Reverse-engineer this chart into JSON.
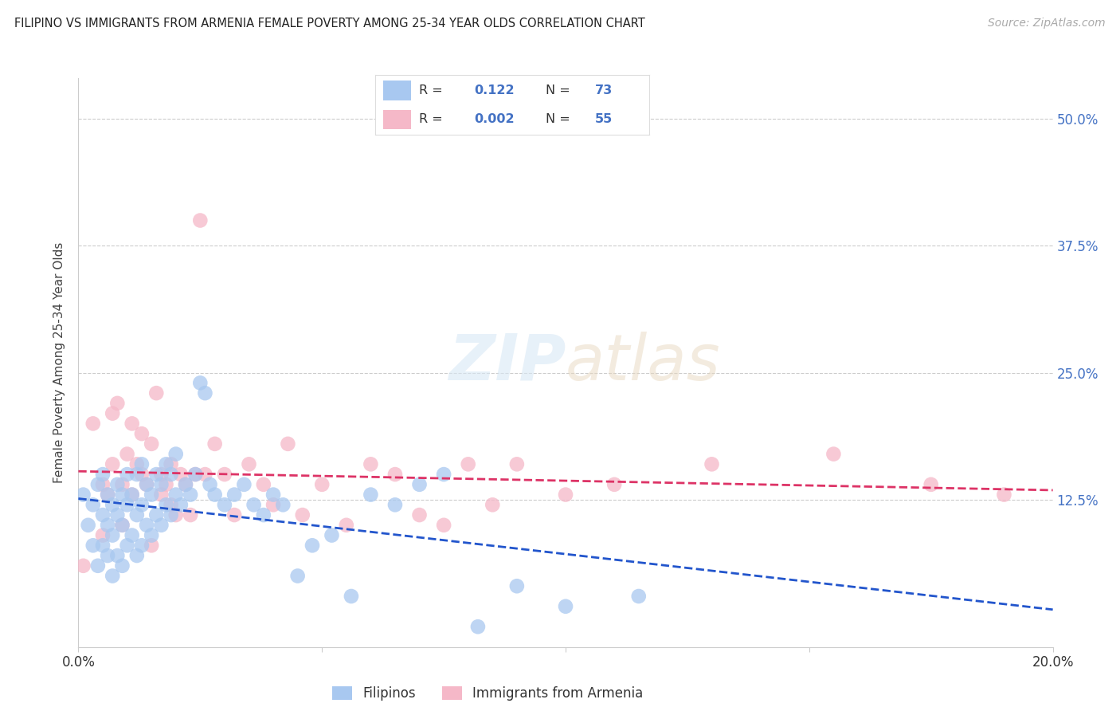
{
  "title": "FILIPINO VS IMMIGRANTS FROM ARMENIA FEMALE POVERTY AMONG 25-34 YEAR OLDS CORRELATION CHART",
  "source": "Source: ZipAtlas.com",
  "ylabel": "Female Poverty Among 25-34 Year Olds",
  "xlim": [
    0.0,
    0.2
  ],
  "ylim": [
    -0.02,
    0.54
  ],
  "xticks": [
    0.0,
    0.05,
    0.1,
    0.15,
    0.2
  ],
  "xtick_labels": [
    "0.0%",
    "",
    "",
    "",
    "20.0%"
  ],
  "ytick_positions": [
    0.0,
    0.125,
    0.25,
    0.375,
    0.5
  ],
  "ytick_labels_right": [
    "",
    "12.5%",
    "25.0%",
    "37.5%",
    "50.0%"
  ],
  "background_color": "#ffffff",
  "grid_color": "#cccccc",
  "filipino_color": "#a8c8f0",
  "armenia_color": "#f5b8c8",
  "filipino_line_color": "#2255cc",
  "armenia_line_color": "#dd3366",
  "watermark": "ZIPatlas",
  "legend_label_1": "Filipinos",
  "legend_label_2": "Immigrants from Armenia",
  "filipino_x": [
    0.001,
    0.002,
    0.003,
    0.003,
    0.004,
    0.004,
    0.005,
    0.005,
    0.005,
    0.006,
    0.006,
    0.006,
    0.007,
    0.007,
    0.007,
    0.008,
    0.008,
    0.008,
    0.009,
    0.009,
    0.009,
    0.01,
    0.01,
    0.01,
    0.011,
    0.011,
    0.012,
    0.012,
    0.012,
    0.013,
    0.013,
    0.013,
    0.014,
    0.014,
    0.015,
    0.015,
    0.016,
    0.016,
    0.017,
    0.017,
    0.018,
    0.018,
    0.019,
    0.019,
    0.02,
    0.02,
    0.021,
    0.022,
    0.023,
    0.024,
    0.025,
    0.026,
    0.027,
    0.028,
    0.03,
    0.032,
    0.034,
    0.036,
    0.038,
    0.04,
    0.042,
    0.045,
    0.048,
    0.052,
    0.056,
    0.06,
    0.065,
    0.07,
    0.075,
    0.082,
    0.09,
    0.1,
    0.115
  ],
  "filipino_y": [
    0.13,
    0.1,
    0.08,
    0.12,
    0.06,
    0.14,
    0.08,
    0.11,
    0.15,
    0.07,
    0.1,
    0.13,
    0.05,
    0.09,
    0.12,
    0.07,
    0.11,
    0.14,
    0.06,
    0.1,
    0.13,
    0.08,
    0.12,
    0.15,
    0.09,
    0.13,
    0.07,
    0.11,
    0.15,
    0.08,
    0.12,
    0.16,
    0.1,
    0.14,
    0.09,
    0.13,
    0.11,
    0.15,
    0.1,
    0.14,
    0.12,
    0.16,
    0.11,
    0.15,
    0.13,
    0.17,
    0.12,
    0.14,
    0.13,
    0.15,
    0.24,
    0.23,
    0.14,
    0.13,
    0.12,
    0.13,
    0.14,
    0.12,
    0.11,
    0.13,
    0.12,
    0.05,
    0.08,
    0.09,
    0.03,
    0.13,
    0.12,
    0.14,
    0.15,
    0.0,
    0.04,
    0.02,
    0.03
  ],
  "armenia_x": [
    0.001,
    0.003,
    0.005,
    0.006,
    0.007,
    0.008,
    0.009,
    0.01,
    0.011,
    0.012,
    0.013,
    0.014,
    0.015,
    0.016,
    0.017,
    0.018,
    0.019,
    0.02,
    0.021,
    0.022,
    0.023,
    0.024,
    0.025,
    0.026,
    0.028,
    0.03,
    0.032,
    0.035,
    0.038,
    0.04,
    0.043,
    0.046,
    0.05,
    0.055,
    0.06,
    0.065,
    0.07,
    0.075,
    0.08,
    0.085,
    0.09,
    0.1,
    0.11,
    0.13,
    0.155,
    0.175,
    0.19,
    0.005,
    0.007,
    0.009,
    0.011,
    0.013,
    0.015,
    0.017,
    0.019
  ],
  "armenia_y": [
    0.06,
    0.2,
    0.09,
    0.13,
    0.21,
    0.22,
    0.14,
    0.17,
    0.2,
    0.16,
    0.19,
    0.14,
    0.18,
    0.23,
    0.15,
    0.14,
    0.16,
    0.11,
    0.15,
    0.14,
    0.11,
    0.15,
    0.4,
    0.15,
    0.18,
    0.15,
    0.11,
    0.16,
    0.14,
    0.12,
    0.18,
    0.11,
    0.14,
    0.1,
    0.16,
    0.15,
    0.11,
    0.1,
    0.16,
    0.12,
    0.16,
    0.13,
    0.14,
    0.16,
    0.17,
    0.14,
    0.13,
    0.14,
    0.16,
    0.1,
    0.13,
    0.15,
    0.08,
    0.13,
    0.12
  ]
}
